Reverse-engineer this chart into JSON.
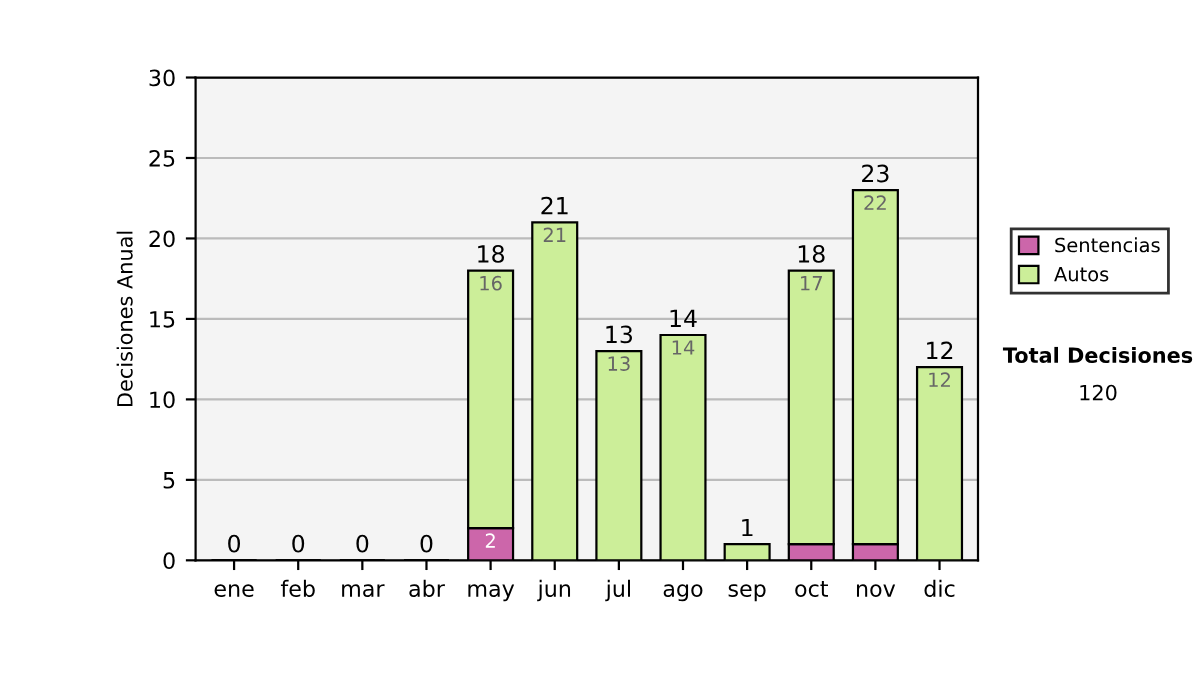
{
  "chart_data": {
    "type": "bar",
    "stacked": true,
    "ylabel": "Decisiones Anual",
    "categories": [
      "ene",
      "feb",
      "mar",
      "abr",
      "may",
      "jun",
      "jul",
      "ago",
      "sep",
      "oct",
      "nov",
      "dic"
    ],
    "series": [
      {
        "name": "Sentencias",
        "color": "#cc66aa",
        "values": [
          0,
          0,
          0,
          0,
          2,
          0,
          0,
          0,
          0,
          1,
          1,
          0
        ],
        "value_labels": [
          null,
          null,
          null,
          null,
          "2",
          null,
          null,
          null,
          null,
          null,
          null,
          null
        ]
      },
      {
        "name": "Autos",
        "color": "#ccee99",
        "values": [
          0,
          0,
          0,
          0,
          16,
          21,
          13,
          14,
          1,
          17,
          22,
          12
        ],
        "value_labels": [
          null,
          null,
          null,
          null,
          "16",
          "21",
          "13",
          "14",
          null,
          "17",
          "22",
          "12"
        ]
      }
    ],
    "totals": [
      "0",
      "0",
      "0",
      "0",
      "18",
      "21",
      "13",
      "14",
      "1",
      "18",
      "23",
      "12"
    ],
    "ylim": [
      0,
      30
    ],
    "yticks": [
      0,
      5,
      10,
      15,
      20,
      25,
      30
    ],
    "grid": "y",
    "legend": "right",
    "annotations": [
      "Total Decisiones",
      "120"
    ]
  }
}
